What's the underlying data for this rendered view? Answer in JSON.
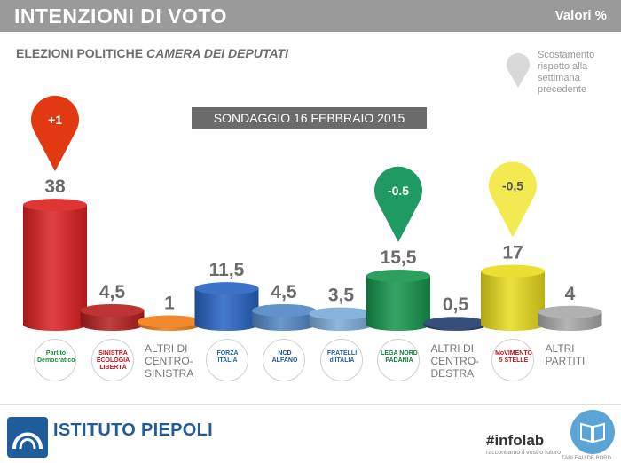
{
  "header": {
    "title": "INTENZIONI DI VOTO",
    "units": "Valori %"
  },
  "subtitle": {
    "prefix": "ELEZIONI POLITICHE",
    "emph": "CAMERA DEI DEPUTATI"
  },
  "legend": {
    "text": "Scostamento rispetto alla settimana precedente"
  },
  "survey_label": "SONDAGGIO 16 FEBBRAIO 2015",
  "chart_data": {
    "type": "bar",
    "categories": [
      "PD",
      "SEL",
      "ALTRI DI CENTRO-SINISTRA",
      "FORZA ITALIA",
      "NCD",
      "FRATELLI D'ITALIA",
      "LEGA NORD",
      "ALTRI DI CENTRO-DESTRA",
      "MOVIMENTO 5 STELLE",
      "ALTRI PARTITI"
    ],
    "values": [
      38,
      4.5,
      1,
      11.5,
      4.5,
      3.5,
      15.5,
      0.5,
      17,
      4
    ],
    "value_labels": [
      "38",
      "4,5",
      "1",
      "11,5",
      "4,5",
      "3,5",
      "15,5",
      "0,5",
      "17",
      "4"
    ],
    "colors": [
      "#dd1f1f",
      "#b51d1d",
      "#f07d16",
      "#2563c2",
      "#4f86c6",
      "#7aaad7",
      "#14954a",
      "#1f3a6b",
      "#e8dc1c",
      "#a8a8a8"
    ],
    "changes": [
      {
        "index": 0,
        "label": "+1",
        "color": "#e13a12"
      },
      {
        "index": 6,
        "label": "-0.5",
        "color": "#1e9a62"
      },
      {
        "index": 8,
        "label": "-0,5",
        "color": "#f2ea50"
      }
    ],
    "ylim": [
      0,
      40
    ]
  },
  "text_categories": [
    {
      "index": 2,
      "lines": [
        "ALTRI DI",
        "CENTRO-",
        "SINISTRA"
      ]
    },
    {
      "index": 7,
      "lines": [
        "ALTRI DI",
        "CENTRO-",
        "DESTRA"
      ]
    },
    {
      "index": 9,
      "lines": [
        "ALTRI",
        "PARTITI"
      ]
    }
  ],
  "logos": [
    {
      "index": 0,
      "text": "Partito Democratico",
      "color": "#1a8c3a"
    },
    {
      "index": 1,
      "text": "SINISTRA ECOLOGIA LIBERTÀ",
      "color": "#c0141c"
    },
    {
      "index": 3,
      "text": "FORZA ITALIA",
      "color": "#1b5fb0"
    },
    {
      "index": 4,
      "text": "NCD ALFANO",
      "color": "#1b4f9c"
    },
    {
      "index": 5,
      "text": "FRATELLI d'ITALIA",
      "color": "#1b5fb0"
    },
    {
      "index": 6,
      "text": "LEGA NORD PADANIA",
      "color": "#0d7a3c"
    },
    {
      "index": 8,
      "text": "MoVIMENTO 5 STELLE",
      "color": "#c0141c"
    }
  ],
  "footer": {
    "brand": "ISTITUTO PIEPOLI",
    "infolab": "#infolab",
    "infolab_tag": "raccontiamo il vostro futuro",
    "book_label": "TABLEAU DE BORD"
  },
  "colors": {
    "header_bg": "#9a9a9a",
    "date_box_bg": "#6b6b6b"
  }
}
